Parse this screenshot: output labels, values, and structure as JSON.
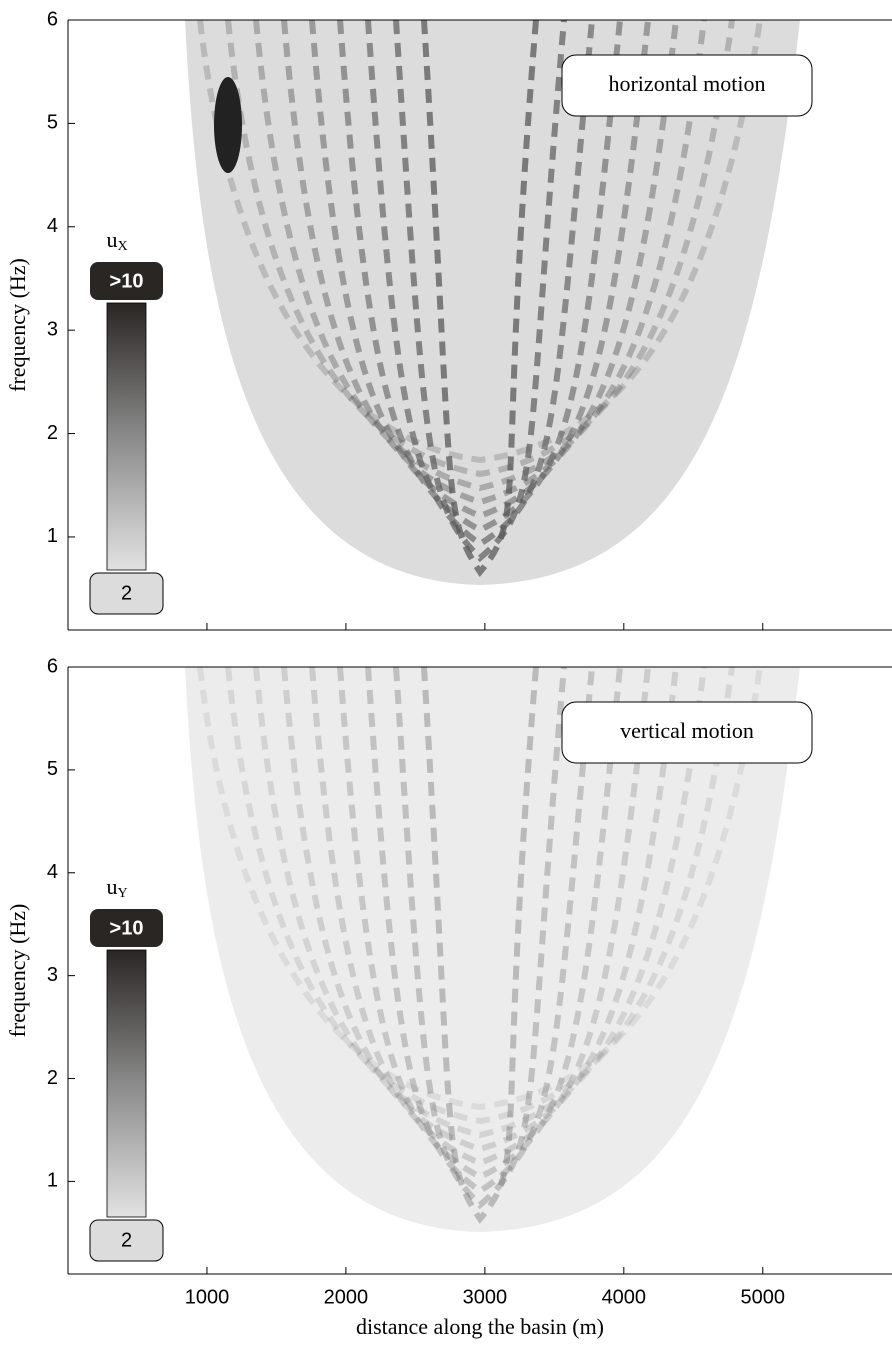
{
  "chart_data": [
    {
      "type": "contour",
      "annotation": "horizontal motion",
      "xlim": [
        0,
        5930
      ],
      "xticks": [
        1000,
        2000,
        3000,
        4000,
        5000
      ],
      "ylabel": "frequency (Hz)",
      "ylim": [
        0.1,
        6
      ],
      "yticks": [
        1,
        2,
        3,
        4,
        5,
        6
      ],
      "colorbar": {
        "label": "u",
        "subscript": "X",
        "max_label": ">10",
        "min_label": "2"
      }
    },
    {
      "type": "contour",
      "annotation": "vertical motion",
      "xlabel": "distance along the basin (m)",
      "xlim": [
        0,
        5930
      ],
      "xticks": [
        1000,
        2000,
        3000,
        4000,
        5000
      ],
      "xtick_labels": true,
      "ylabel": "frequency (Hz)",
      "ylim": [
        0.1,
        6
      ],
      "yticks": [
        1,
        2,
        3,
        4,
        5,
        6
      ],
      "colorbar": {
        "label": "u",
        "subscript": "Y",
        "max_label": ">10",
        "min_label": "2"
      }
    }
  ]
}
